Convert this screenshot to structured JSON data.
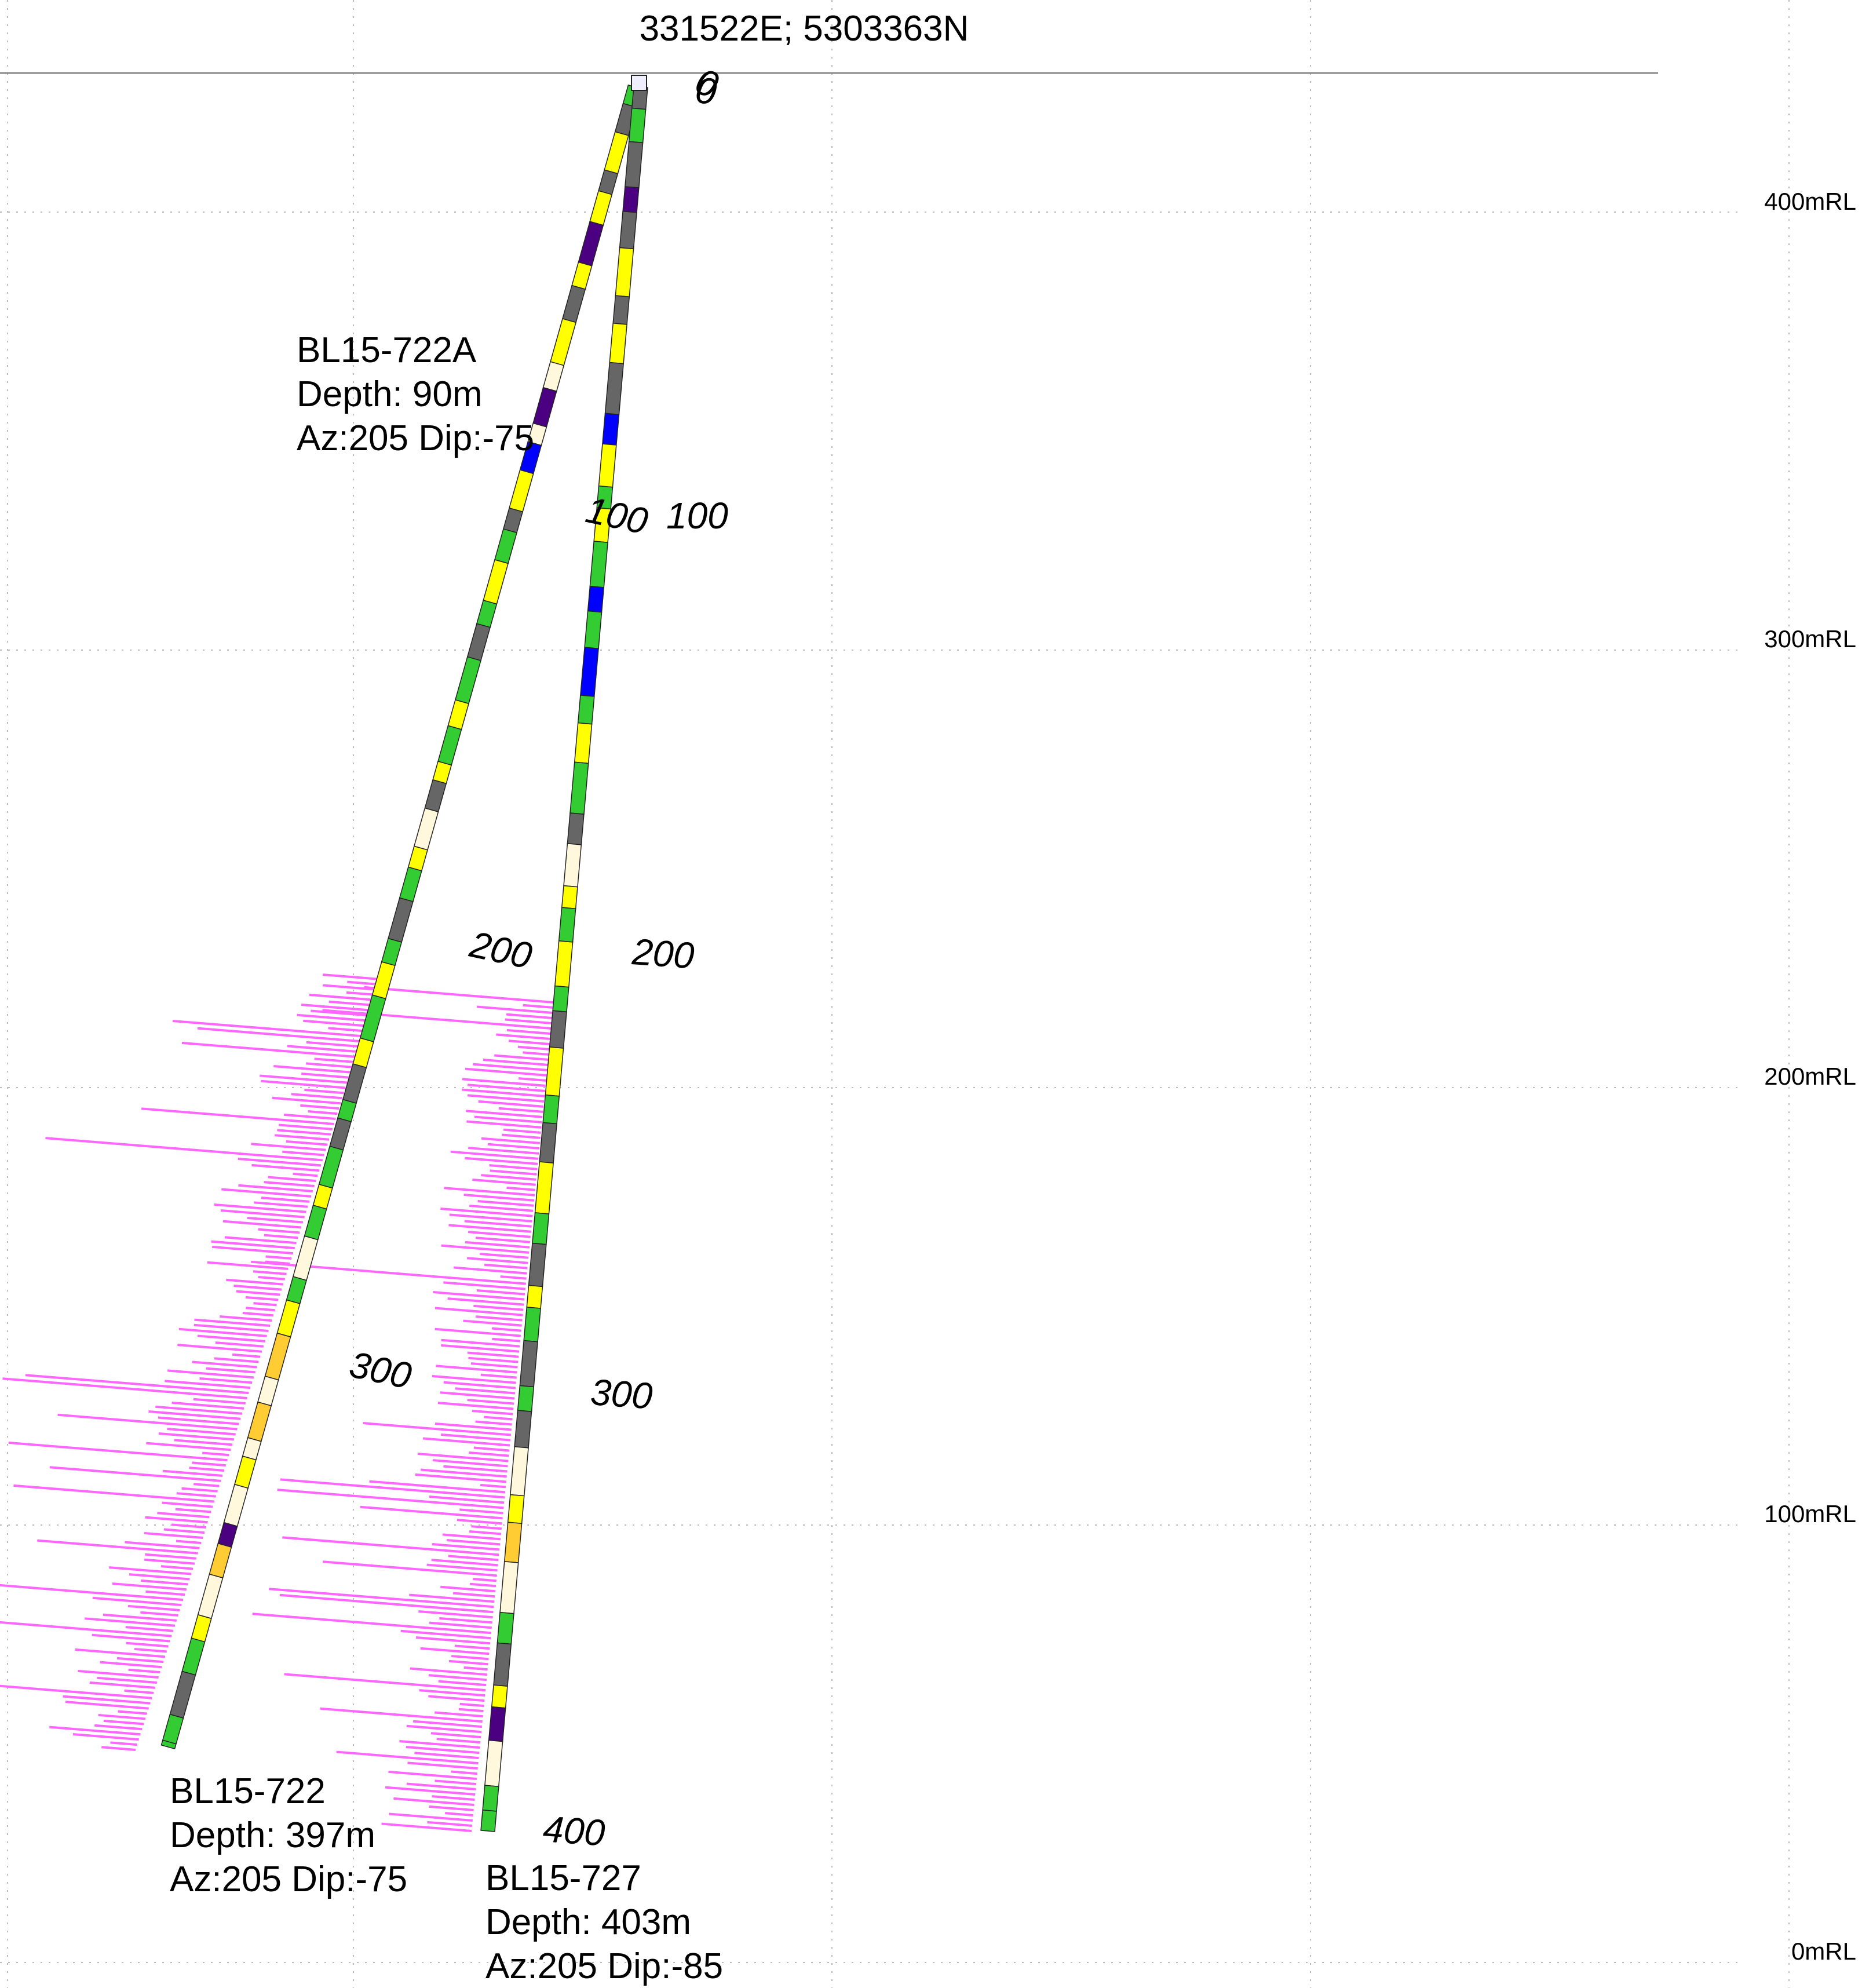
{
  "collar_coordinate": "331522E; 5303363N",
  "rl_levels": [
    {
      "label": "400mRL",
      "rl": 400
    },
    {
      "label": "300mRL",
      "rl": 300
    },
    {
      "label": "200mRL",
      "rl": 200
    },
    {
      "label": "100mRL",
      "rl": 100
    },
    {
      "label": "0mRL",
      "rl": 0
    }
  ],
  "holes": [
    {
      "id": "BL15-722A",
      "depth_text": "Depth: 90m",
      "az_dip_text": "Az:205 Dip:-75",
      "depth_labels": [
        "0",
        "100",
        "200",
        "300"
      ]
    },
    {
      "id": "BL15-722",
      "depth_text": "Depth: 397m",
      "az_dip_text": "Az:205 Dip:-75"
    },
    {
      "id": "BL15-727",
      "depth_text": "Depth: 403m",
      "az_dip_text": "Az:205 Dip:-85",
      "depth_labels": [
        "0",
        "100",
        "200",
        "300",
        "400"
      ]
    }
  ],
  "legend_colors": {
    "green": "#33cc33",
    "yellow": "#ffff00",
    "grey": "#666666",
    "blue": "#0000ff",
    "purple": "#4b0082",
    "pale": "#fff8dc",
    "orange": "#ffcc33",
    "assay": "#ff66ff"
  }
}
